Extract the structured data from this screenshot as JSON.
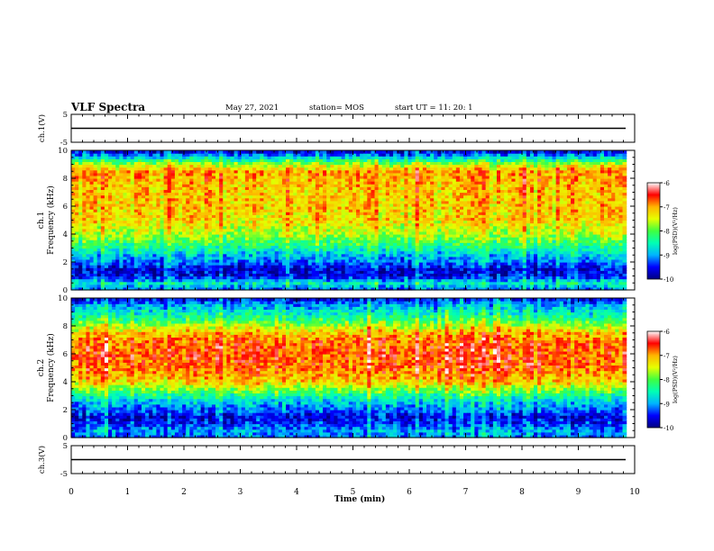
{
  "header": {
    "title": "VLF Spectra",
    "date": "May 27, 2021",
    "station": "station= MOS",
    "start": "start  UT =   11: 20: 1"
  },
  "chart_data": [
    {
      "type": "line",
      "name": "waveform-ch1",
      "ylabel": "ch.1(V)",
      "ylim": [
        -5,
        5
      ],
      "yticks": [
        "5",
        "-5"
      ],
      "xlim": [
        0,
        10
      ],
      "trace_level": 0
    },
    {
      "type": "heatmap",
      "name": "spectrogram-ch1",
      "ylabel": "ch.1\nFrequency (kHz)",
      "ylim": [
        0,
        10
      ],
      "yticks": [
        0,
        2,
        4,
        6,
        8,
        10
      ],
      "xlim": [
        0,
        10
      ],
      "data_end_min": 9.85,
      "band_profile": [
        {
          "f": 0.0,
          "level": -9.3
        },
        {
          "f": 0.5,
          "level": -8.6
        },
        {
          "f": 1.0,
          "level": -9.6
        },
        {
          "f": 1.5,
          "level": -9.7
        },
        {
          "f": 2.0,
          "level": -9.2
        },
        {
          "f": 2.5,
          "level": -8.9
        },
        {
          "f": 3.0,
          "level": -8.5
        },
        {
          "f": 3.5,
          "level": -8.1
        },
        {
          "f": 4.0,
          "level": -7.7
        },
        {
          "f": 5.0,
          "level": -7.3
        },
        {
          "f": 6.0,
          "level": -7.2
        },
        {
          "f": 7.0,
          "level": -7.2
        },
        {
          "f": 8.0,
          "level": -7.1
        },
        {
          "f": 8.5,
          "level": -7.0
        },
        {
          "f": 9.0,
          "level": -7.6
        },
        {
          "f": 9.5,
          "level": -8.8
        },
        {
          "f": 10.0,
          "level": -9.8
        }
      ],
      "colorbar": {
        "min": -10,
        "max": -6,
        "ticks": [
          "-6",
          "-7",
          "-8",
          "-9",
          "-10"
        ],
        "label": "log(PSD)(V²/Hz)"
      }
    },
    {
      "type": "heatmap",
      "name": "spectrogram-ch2",
      "ylabel": "ch.2\nFrequency (kHz)",
      "ylim": [
        0,
        10
      ],
      "yticks": [
        0,
        2,
        4,
        6,
        8,
        10
      ],
      "xlim": [
        0,
        10
      ],
      "data_end_min": 9.85,
      "band_profile": [
        {
          "f": 0.0,
          "level": -9.2
        },
        {
          "f": 0.5,
          "level": -9.0
        },
        {
          "f": 1.0,
          "level": -9.4
        },
        {
          "f": 1.5,
          "level": -9.6
        },
        {
          "f": 2.0,
          "level": -9.2
        },
        {
          "f": 2.5,
          "level": -8.9
        },
        {
          "f": 3.0,
          "level": -8.4
        },
        {
          "f": 3.5,
          "level": -7.8
        },
        {
          "f": 4.0,
          "level": -7.2
        },
        {
          "f": 5.0,
          "level": -6.8
        },
        {
          "f": 6.0,
          "level": -6.7
        },
        {
          "f": 7.0,
          "level": -6.8
        },
        {
          "f": 7.5,
          "level": -7.1
        },
        {
          "f": 8.0,
          "level": -7.6
        },
        {
          "f": 8.5,
          "level": -8.2
        },
        {
          "f": 9.0,
          "level": -8.6
        },
        {
          "f": 9.5,
          "level": -9.0
        },
        {
          "f": 10.0,
          "level": -9.6
        }
      ],
      "colorbar": {
        "min": -10,
        "max": -6,
        "ticks": [
          "-6",
          "-7",
          "-8",
          "-9",
          "-10"
        ],
        "label": "log(PSD)(V²/Hz)"
      }
    },
    {
      "type": "line",
      "name": "waveform-ch3",
      "ylabel": "ch.3(V)",
      "ylim": [
        -5,
        5
      ],
      "yticks": [
        "5",
        "-5"
      ],
      "xlim": [
        0,
        10
      ],
      "trace_level": 0
    }
  ],
  "xaxis": {
    "label": "Time (min)",
    "ticks": [
      "0",
      "1",
      "2",
      "3",
      "4",
      "5",
      "6",
      "7",
      "8",
      "9",
      "10"
    ]
  },
  "colormap": [
    "#000080",
    "#0000ff",
    "#00b4ff",
    "#00ffb4",
    "#40ff40",
    "#e6ff00",
    "#ffb400",
    "#ff0000",
    "#ffffff"
  ]
}
